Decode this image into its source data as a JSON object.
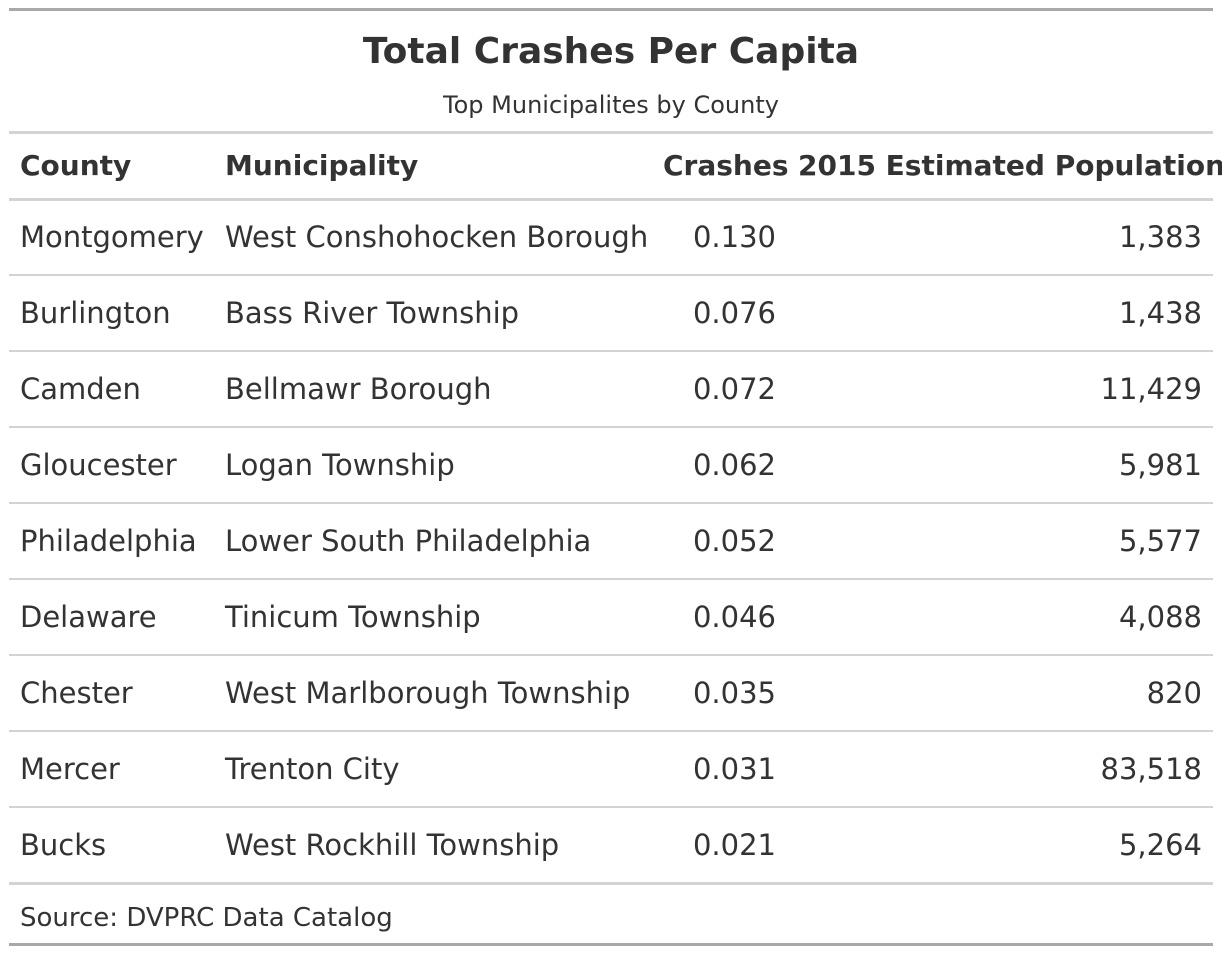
{
  "title": "Total Crashes Per Capita",
  "subtitle": "Top Municipalites by County",
  "columns": {
    "county": "County",
    "municipality": "Municipality",
    "crashes": "Crashes",
    "population": "2015 Estimated Population"
  },
  "rows": [
    {
      "county": "Montgomery",
      "municipality": "West Conshohocken Borough",
      "crashes": "0.130",
      "population": "1,383"
    },
    {
      "county": "Burlington",
      "municipality": "Bass River Township",
      "crashes": "0.076",
      "population": "1,438"
    },
    {
      "county": "Camden",
      "municipality": "Bellmawr Borough",
      "crashes": "0.072",
      "population": "11,429"
    },
    {
      "county": "Gloucester",
      "municipality": "Logan Township",
      "crashes": "0.062",
      "population": "5,981"
    },
    {
      "county": "Philadelphia",
      "municipality": "Lower South Philadelphia",
      "crashes": "0.052",
      "population": "5,577"
    },
    {
      "county": "Delaware",
      "municipality": "Tinicum Township",
      "crashes": "0.046",
      "population": "4,088"
    },
    {
      "county": "Chester",
      "municipality": "West Marlborough Township",
      "crashes": "0.035",
      "population": "820"
    },
    {
      "county": "Mercer",
      "municipality": "Trenton City",
      "crashes": "0.031",
      "population": "83,518"
    },
    {
      "county": "Bucks",
      "municipality": "West Rockhill Township",
      "crashes": "0.021",
      "population": "5,264"
    }
  ],
  "source_note": "Source: DVPRC Data Catalog",
  "colors": {
    "text": "#333333",
    "outer_border": "#a8a8a8",
    "rule": "#d3d3d3",
    "background": "#ffffff"
  }
}
